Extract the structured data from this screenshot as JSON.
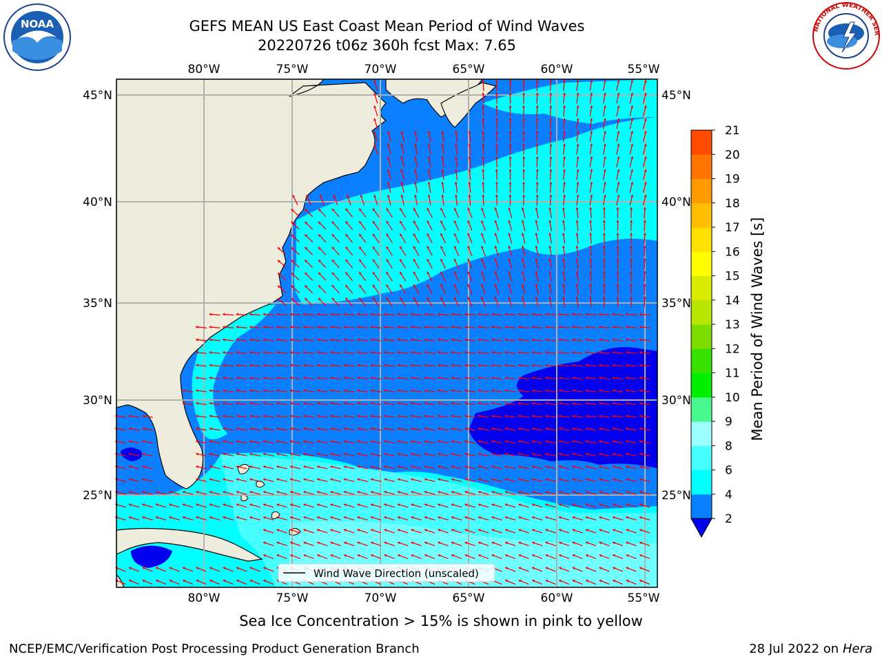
{
  "title": "GEFS MEAN US East Coast Mean Period of Wind Waves",
  "subtitle": "20220726 t06z 360h fcst   Max: 7.65",
  "sea_ice_note": "Sea Ice Concentration > 15% is shown in pink to yellow",
  "footer_left": "NCEP/EMC/Verification Post Processing Product Generation Branch",
  "footer_date": "28 Jul 2022 on ",
  "footer_machine": "Hera",
  "logos": {
    "left": "NOAA",
    "right": "NATIONAL WEATHER SERVICE"
  },
  "map": {
    "lon_ticks": [
      "80°W",
      "75°W",
      "70°W",
      "65°W",
      "60°W",
      "55°W"
    ],
    "lat_ticks": [
      "45°N",
      "40°N",
      "35°N",
      "30°N",
      "25°N"
    ],
    "legend_label": "Wind Wave Direction (unscaled)",
    "colors": {
      "land": "#eeeddd",
      "ocean_2_4": "#0a7fff",
      "ocean_4_6": "#00ffff",
      "ocean_6_8": "#48ffff",
      "ocean_lt2": "#0000ee",
      "arrow": "#ff0000"
    }
  },
  "colorbar": {
    "label": "Mean Period of Wind Waves [s]",
    "ticks": [
      "2",
      "4",
      "6",
      "8",
      "9",
      "10",
      "11",
      "12",
      "13",
      "14",
      "15",
      "16",
      "17",
      "18",
      "19",
      "20",
      "21"
    ],
    "colors": [
      "#0a7fff",
      "#00ffff",
      "#48ffff",
      "#9cffff",
      "#49f98f",
      "#00ee00",
      "#38e000",
      "#7edc00",
      "#b7e500",
      "#d8ec00",
      "#fefe00",
      "#ffe000",
      "#ffbf00",
      "#ff9b00",
      "#ff7500",
      "#ff4a00",
      "#ff1600",
      "#ff0000"
    ],
    "under_color": "#0000ee"
  }
}
